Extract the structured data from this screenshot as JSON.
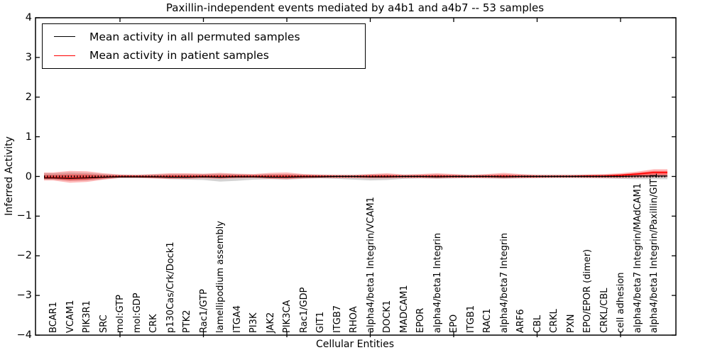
{
  "chart_data": {
    "type": "line",
    "title": "Paxillin-independent events mediated by a4b1 and a4b7 -- 53 samples",
    "xlabel": "Cellular Entities",
    "ylabel": "Inferred Activity",
    "ylim": [
      -4,
      4
    ],
    "yticks": [
      "4",
      "3",
      "2",
      "1",
      "0",
      "−1",
      "−2",
      "−3",
      "−4"
    ],
    "grid": false,
    "legend_position": "upper left",
    "legend": [
      {
        "label": "Mean activity in all permuted samples",
        "color": "#000000"
      },
      {
        "label": "Mean activity in patient samples",
        "color": "#ff0000"
      }
    ],
    "categories": [
      "BCAR1",
      "VCAM1",
      "PIK3R1",
      "SRC",
      "mol:GTP",
      "mol:GDP",
      "CRK",
      "p130Cas/Crk/Dock1",
      "PTK2",
      "Rac1/GTP",
      "lamellipodium assembly",
      "ITGA4",
      "PI3K",
      "JAK2",
      "PIK3CA",
      "Rac1/GDP",
      "GIT1",
      "ITGB7",
      "RHOA",
      "alpha4/beta1 Integrin/VCAM1",
      "DOCK1",
      "MADCAM1",
      "EPOR",
      "alpha4/beta1 Integrin",
      "EPO",
      "ITGB1",
      "RAC1",
      "alpha4/beta7 Integrin",
      "ARF6",
      "CBL",
      "CRKL",
      "PXN",
      "EPO/EPOR (dimer)",
      "CRKL/CBL",
      "cell adhesion",
      "alpha4/beta7 Integrin/MAdCAM1",
      "alpha4/beta1 Integrin/Paxillin/GIT1"
    ],
    "series": [
      {
        "name": "Mean activity in all permuted samples",
        "color": "#000000",
        "style": "solid",
        "values": [
          -0.04,
          -0.05,
          -0.04,
          -0.02,
          -0.01,
          -0.01,
          -0.01,
          -0.02,
          -0.02,
          -0.01,
          -0.02,
          -0.01,
          -0.01,
          -0.02,
          -0.02,
          -0.01,
          -0.01,
          0,
          0,
          -0.01,
          -0.01,
          0,
          0,
          -0.01,
          0,
          0,
          0,
          -0.01,
          0,
          0,
          0,
          0,
          0,
          0,
          0,
          0.01,
          0.01
        ]
      },
      {
        "name": "Mean activity in patient samples",
        "color": "#ff0000",
        "style": "solid",
        "values": [
          -0.03,
          -0.04,
          -0.03,
          -0.02,
          0,
          0,
          -0.01,
          -0.01,
          -0.01,
          0,
          -0.01,
          0,
          0,
          -0.01,
          -0.01,
          0,
          0,
          0,
          0,
          0,
          0,
          0,
          0,
          0,
          0,
          0,
          0,
          0,
          0,
          0,
          0,
          0,
          0.01,
          0.01,
          0.03,
          0.06,
          0.1
        ]
      }
    ],
    "bands": [
      {
        "name": "patient-samples-spread",
        "color": "rgba(255,0,0,0.28)",
        "upper": [
          0.1,
          0.14,
          0.13,
          0.08,
          0.05,
          0.04,
          0.06,
          0.08,
          0.08,
          0.07,
          0.09,
          0.07,
          0.06,
          0.09,
          0.1,
          0.06,
          0.05,
          0.04,
          0.04,
          0.06,
          0.08,
          0.05,
          0.06,
          0.08,
          0.06,
          0.04,
          0.06,
          0.09,
          0.06,
          0.04,
          0.04,
          0.04,
          0.05,
          0.06,
          0.08,
          0.12,
          0.18
        ],
        "lower": [
          -0.1,
          -0.16,
          -0.14,
          -0.08,
          -0.04,
          -0.04,
          -0.05,
          -0.06,
          -0.06,
          -0.05,
          -0.06,
          -0.05,
          -0.04,
          -0.06,
          -0.07,
          -0.05,
          -0.04,
          -0.04,
          -0.04,
          -0.05,
          -0.05,
          -0.04,
          -0.04,
          -0.05,
          -0.04,
          -0.04,
          -0.04,
          -0.05,
          -0.04,
          -0.04,
          -0.03,
          -0.03,
          -0.04,
          -0.04,
          -0.04,
          -0.03,
          -0.02
        ]
      },
      {
        "name": "permuted-samples-spread",
        "color": "rgba(128,128,128,0.35)",
        "upper": [
          0.08,
          0.1,
          0.09,
          0.06,
          0.04,
          0.04,
          0.05,
          0.06,
          0.06,
          0.06,
          0.07,
          0.06,
          0.05,
          0.06,
          0.06,
          0.05,
          0.04,
          0.04,
          0.04,
          0.05,
          0.05,
          0.04,
          0.04,
          0.05,
          0.04,
          0.04,
          0.04,
          0.05,
          0.04,
          0.04,
          0.04,
          0.04,
          0.04,
          0.04,
          0.05,
          0.05,
          0.05
        ],
        "lower": [
          -0.08,
          -0.11,
          -0.1,
          -0.07,
          -0.04,
          -0.04,
          -0.05,
          -0.07,
          -0.08,
          -0.09,
          -0.13,
          -0.11,
          -0.08,
          -0.07,
          -0.08,
          -0.06,
          -0.05,
          -0.06,
          -0.08,
          -0.1,
          -0.09,
          -0.06,
          -0.05,
          -0.06,
          -0.05,
          -0.04,
          -0.05,
          -0.06,
          -0.05,
          -0.04,
          -0.04,
          -0.04,
          -0.04,
          -0.05,
          -0.06,
          -0.07,
          -0.07
        ]
      }
    ],
    "zero_line": {
      "value": 0,
      "style": "dotted",
      "color": "#000000"
    }
  }
}
